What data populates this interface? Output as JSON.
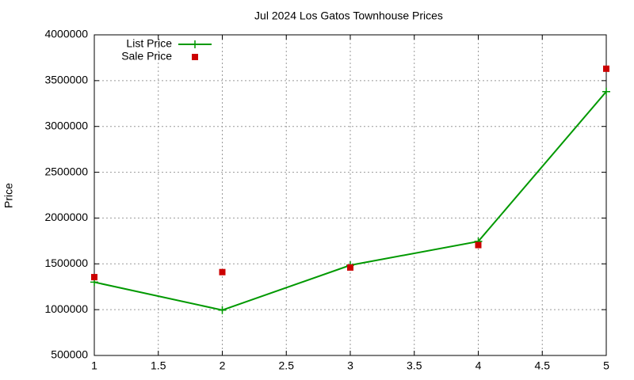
{
  "chart_data": {
    "type": "line",
    "title": "Jul 2024 Los Gatos Townhouse Prices",
    "y_label": "Price",
    "x": [
      1,
      2,
      3,
      4,
      5
    ],
    "series": [
      {
        "name": "List Price",
        "color": "#009900",
        "style": "linespoints",
        "values": [
          1300000,
          995000,
          1485000,
          1745000,
          3380000
        ]
      },
      {
        "name": "Sale Price",
        "color": "#cc0000",
        "style": "points",
        "values": [
          1355000,
          1410000,
          1460000,
          1705000,
          3630000
        ]
      }
    ],
    "xlim": [
      1,
      5
    ],
    "xticks": [
      1,
      1.5,
      2,
      2.5,
      3,
      3.5,
      4,
      4.5,
      5
    ],
    "ylim": [
      500000,
      4000000
    ],
    "yticks": [
      500000,
      1000000,
      1500000,
      2000000,
      2500000,
      3000000,
      3500000,
      4000000
    ],
    "grid": true,
    "legend": "top-left"
  }
}
